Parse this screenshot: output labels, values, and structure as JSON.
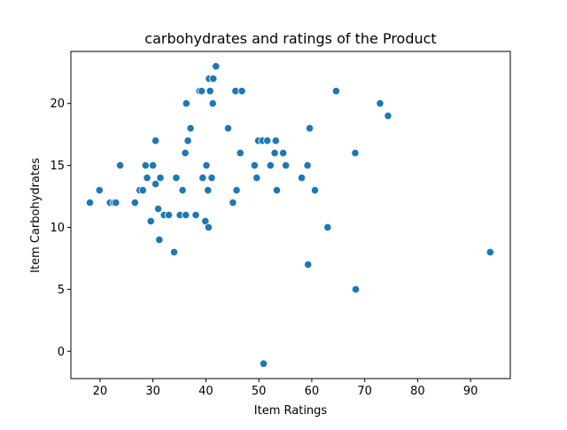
{
  "chart_data": {
    "type": "scatter",
    "title": "carbohydrates and ratings of the Product",
    "xlabel": "Item Ratings",
    "ylabel": "Item Carbohydrates",
    "xlim": [
      14.5,
      97.5
    ],
    "ylim": [
      -2.2,
      24.2
    ],
    "xticks": [
      20,
      30,
      40,
      50,
      60,
      70,
      80,
      90
    ],
    "yticks": [
      0,
      5,
      10,
      15,
      20
    ],
    "grid": false,
    "point_color": "#1f77b4",
    "points": [
      [
        18.1,
        12
      ],
      [
        19.9,
        13
      ],
      [
        21.9,
        12
      ],
      [
        22.6,
        12
      ],
      [
        23.0,
        12
      ],
      [
        23.8,
        15
      ],
      [
        26.6,
        12
      ],
      [
        27.5,
        13
      ],
      [
        28.1,
        13
      ],
      [
        28.6,
        15
      ],
      [
        28.9,
        14
      ],
      [
        29.6,
        10.5
      ],
      [
        30.0,
        15
      ],
      [
        30.5,
        17
      ],
      [
        30.5,
        13.5
      ],
      [
        31.0,
        11.5
      ],
      [
        31.2,
        9
      ],
      [
        31.4,
        14
      ],
      [
        32.1,
        11
      ],
      [
        33.0,
        11
      ],
      [
        34.0,
        8
      ],
      [
        34.4,
        14
      ],
      [
        35.1,
        11
      ],
      [
        35.6,
        13
      ],
      [
        36.1,
        16
      ],
      [
        36.2,
        11
      ],
      [
        36.3,
        20
      ],
      [
        36.6,
        17
      ],
      [
        37.1,
        18
      ],
      [
        38.1,
        11
      ],
      [
        38.8,
        21
      ],
      [
        39.2,
        21
      ],
      [
        39.4,
        14
      ],
      [
        39.9,
        10.5
      ],
      [
        40.1,
        15
      ],
      [
        40.4,
        13
      ],
      [
        40.5,
        10
      ],
      [
        40.6,
        22
      ],
      [
        40.8,
        21
      ],
      [
        41.1,
        14
      ],
      [
        41.3,
        20
      ],
      [
        41.4,
        22
      ],
      [
        41.9,
        23
      ],
      [
        44.2,
        18
      ],
      [
        45.1,
        12
      ],
      [
        45.6,
        21
      ],
      [
        45.8,
        13
      ],
      [
        46.5,
        16
      ],
      [
        46.8,
        21
      ],
      [
        49.2,
        15
      ],
      [
        49.6,
        14
      ],
      [
        49.9,
        17
      ],
      [
        50.7,
        17
      ],
      [
        50.9,
        -1
      ],
      [
        51.6,
        17
      ],
      [
        52.2,
        15
      ],
      [
        53.0,
        16
      ],
      [
        53.2,
        17
      ],
      [
        53.4,
        13
      ],
      [
        54.6,
        16
      ],
      [
        55.1,
        15
      ],
      [
        58.1,
        14
      ],
      [
        59.2,
        15
      ],
      [
        59.3,
        7
      ],
      [
        59.6,
        18
      ],
      [
        60.6,
        13
      ],
      [
        63.0,
        10
      ],
      [
        64.6,
        21
      ],
      [
        68.2,
        16
      ],
      [
        68.3,
        5
      ],
      [
        72.9,
        20
      ],
      [
        74.4,
        19
      ],
      [
        93.7,
        8
      ]
    ]
  }
}
